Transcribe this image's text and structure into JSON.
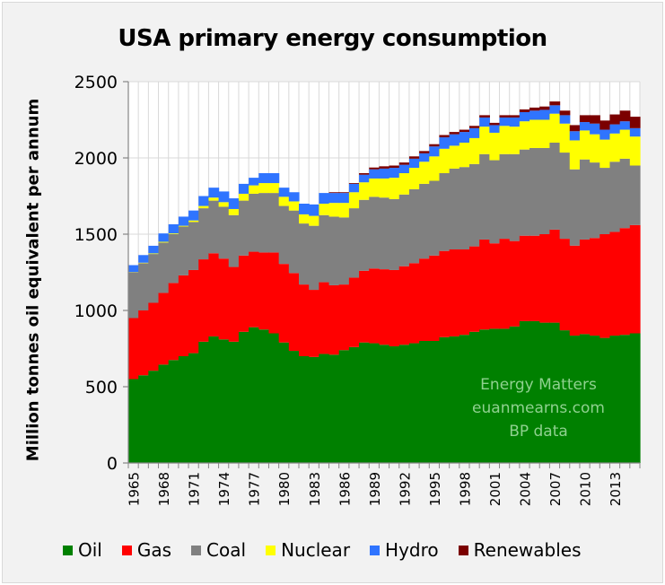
{
  "chart_data": {
    "type": "area",
    "subtype": "stacked-step",
    "title": "USA primary energy consumption",
    "xlabel": "",
    "ylabel": "Million tonnes oil equivalent per annum",
    "ylim": [
      0,
      2500
    ],
    "yticks": [
      0,
      500,
      1000,
      1500,
      2000,
      2500
    ],
    "xtick_labels": [
      "1965",
      "1968",
      "1971",
      "1974",
      "1977",
      "1980",
      "1983",
      "1986",
      "1989",
      "1992",
      "1995",
      "1998",
      "2001",
      "2004",
      "2007",
      "2010",
      "2013"
    ],
    "grid": "vertical",
    "legend_position": "bottom",
    "x": [
      1965,
      1966,
      1967,
      1968,
      1969,
      1970,
      1971,
      1972,
      1973,
      1974,
      1975,
      1976,
      1977,
      1978,
      1979,
      1980,
      1981,
      1982,
      1983,
      1984,
      1985,
      1986,
      1987,
      1988,
      1989,
      1990,
      1991,
      1992,
      1993,
      1994,
      1995,
      1996,
      1997,
      1998,
      1999,
      2000,
      2001,
      2002,
      2003,
      2004,
      2005,
      2006,
      2007,
      2008,
      2009,
      2010,
      2011,
      2012,
      2013,
      2014,
      2015
    ],
    "series": [
      {
        "name": "Oil",
        "color": "#008000",
        "values": [
          550,
          575,
          605,
          645,
          675,
          700,
          720,
          795,
          830,
          810,
          795,
          860,
          890,
          875,
          850,
          790,
          735,
          700,
          695,
          715,
          710,
          740,
          760,
          790,
          785,
          775,
          765,
          775,
          785,
          800,
          800,
          825,
          830,
          840,
          860,
          875,
          880,
          880,
          895,
          930,
          930,
          920,
          920,
          870,
          835,
          845,
          835,
          820,
          835,
          840,
          850
        ]
      },
      {
        "name": "Gas",
        "color": "#ff0000",
        "values": [
          400,
          425,
          445,
          470,
          505,
          530,
          545,
          540,
          545,
          530,
          490,
          500,
          495,
          505,
          530,
          515,
          510,
          470,
          440,
          470,
          455,
          430,
          455,
          470,
          490,
          495,
          500,
          515,
          525,
          540,
          560,
          565,
          570,
          560,
          560,
          590,
          560,
          590,
          560,
          560,
          560,
          580,
          610,
          600,
          590,
          620,
          640,
          680,
          680,
          700,
          710
        ]
      },
      {
        "name": "Coal",
        "color": "#808080",
        "values": [
          300,
          310,
          320,
          330,
          320,
          320,
          315,
          335,
          345,
          340,
          340,
          360,
          380,
          390,
          390,
          380,
          410,
          400,
          420,
          440,
          450,
          440,
          455,
          465,
          470,
          470,
          465,
          470,
          485,
          490,
          490,
          510,
          530,
          540,
          540,
          560,
          545,
          555,
          570,
          565,
          575,
          565,
          570,
          565,
          500,
          525,
          495,
          435,
          460,
          455,
          390
        ]
      },
      {
        "name": "Nuclear",
        "color": "#ffff00",
        "values": [
          2,
          3,
          4,
          5,
          5,
          5,
          10,
          15,
          20,
          30,
          40,
          45,
          55,
          65,
          65,
          60,
          60,
          60,
          65,
          75,
          90,
          95,
          105,
          115,
          120,
          125,
          140,
          140,
          140,
          145,
          160,
          160,
          150,
          160,
          170,
          180,
          180,
          185,
          180,
          185,
          185,
          185,
          190,
          190,
          190,
          190,
          185,
          185,
          185,
          190,
          190
        ]
      },
      {
        "name": "Hydro",
        "color": "#2f74ff",
        "values": [
          45,
          50,
          50,
          55,
          60,
          60,
          65,
          65,
          65,
          70,
          70,
          65,
          50,
          65,
          65,
          60,
          60,
          70,
          75,
          70,
          65,
          65,
          55,
          50,
          60,
          65,
          65,
          55,
          60,
          55,
          65,
          75,
          75,
          70,
          65,
          60,
          50,
          55,
          60,
          60,
          60,
          65,
          55,
          55,
          60,
          55,
          70,
          65,
          60,
          55,
          55
        ]
      },
      {
        "name": "Renewables",
        "color": "#7b0000",
        "values": [
          0,
          0,
          0,
          0,
          0,
          0,
          0,
          0,
          0,
          0,
          0,
          0,
          0,
          0,
          0,
          0,
          0,
          0,
          0,
          0,
          5,
          5,
          5,
          10,
          12,
          15,
          15,
          15,
          15,
          15,
          15,
          15,
          15,
          15,
          15,
          15,
          15,
          15,
          15,
          18,
          20,
          22,
          25,
          30,
          40,
          45,
          55,
          60,
          65,
          70,
          75
        ]
      }
    ],
    "annotations": [
      "Energy Matters",
      "euanmearns.com",
      "BP data"
    ]
  }
}
